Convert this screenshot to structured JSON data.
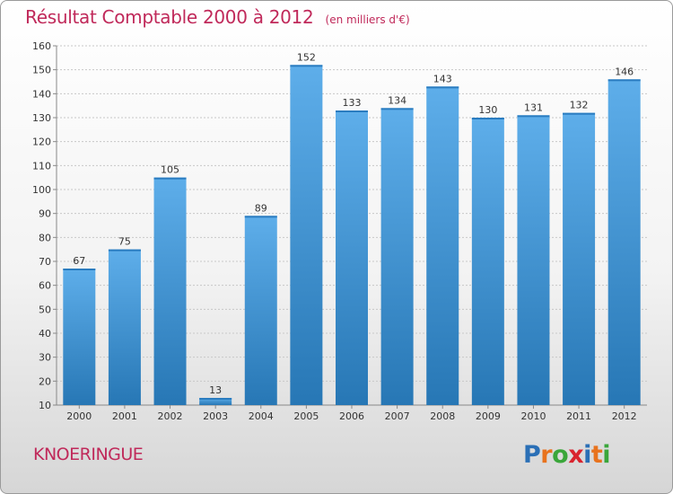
{
  "header": {
    "title": "Résultat Comptable 2000 à 2012",
    "unit_note": "(en milliers d'€)"
  },
  "commune_name": "KNOERINGUE",
  "logo": {
    "text": "Proxiti",
    "letters": [
      "P",
      "r",
      "o",
      "x",
      "i",
      "t",
      "i"
    ],
    "colors": [
      "#2a6fb6",
      "#e8731e",
      "#3aa63a",
      "#d9232e",
      "#2a6fb6",
      "#e8731e",
      "#3aa63a"
    ]
  },
  "colors": {
    "title": "#c0295a",
    "bar_top": "#5eaeea",
    "bar_bottom": "#2777b5"
  },
  "chart_data": {
    "type": "bar",
    "categories": [
      "2000",
      "2001",
      "2002",
      "2003",
      "2004",
      "2005",
      "2006",
      "2007",
      "2008",
      "2009",
      "2010",
      "2011",
      "2012"
    ],
    "values": [
      67,
      75,
      105,
      13,
      89,
      152,
      133,
      134,
      143,
      130,
      131,
      132,
      146
    ],
    "ylim": [
      10,
      160
    ],
    "yticks": [
      10,
      20,
      30,
      40,
      50,
      60,
      70,
      80,
      90,
      100,
      110,
      120,
      130,
      140,
      150,
      160
    ],
    "grid": true
  }
}
